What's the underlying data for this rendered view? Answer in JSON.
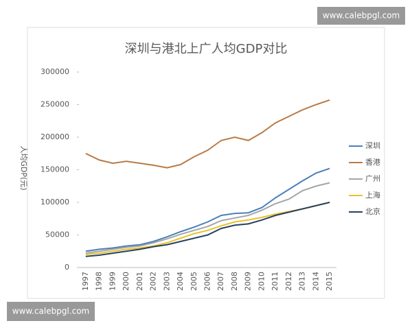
{
  "watermarks": [
    "www.calebpgl.com",
    "www.calebpgl.com"
  ],
  "chart_data": {
    "type": "line",
    "title": "深圳与港北上广人均GDP对比",
    "y_label": "人均GDP(元)",
    "categories": [
      "1997",
      "1998",
      "1999",
      "2000",
      "2001",
      "2002",
      "2003",
      "2004",
      "2005",
      "2006",
      "2007",
      "2008",
      "2009",
      "2010",
      "2011",
      "2012",
      "2013",
      "2014",
      "2015"
    ],
    "series": [
      {
        "name": "深圳",
        "color": "#4a7ebb",
        "values": [
          25000,
          28000,
          30000,
          33000,
          35000,
          40000,
          47000,
          55000,
          62000,
          70000,
          80000,
          83000,
          84000,
          92000,
          107000,
          120000,
          133000,
          145000,
          152000
        ]
      },
      {
        "name": "香港",
        "color": "#b97a45",
        "values": [
          175000,
          165000,
          160000,
          163000,
          160000,
          157000,
          153000,
          158000,
          170000,
          180000,
          195000,
          200000,
          195000,
          207000,
          222000,
          232000,
          242000,
          250000,
          257000
        ]
      },
      {
        "name": "广州",
        "color": "#a5a5a5",
        "values": [
          22000,
          25000,
          28000,
          31000,
          33000,
          38000,
          44000,
          51000,
          57000,
          63000,
          72000,
          76000,
          80000,
          88000,
          98000,
          105000,
          118000,
          125000,
          130000
        ]
      },
      {
        "name": "上海",
        "color": "#e8c229",
        "values": [
          20000,
          22000,
          25000,
          28000,
          30000,
          33000,
          38000,
          45000,
          52000,
          57000,
          64000,
          70000,
          73000,
          77000,
          82000,
          86000,
          90000,
          95000,
          100000
        ]
      },
      {
        "name": "北京",
        "color": "#26415f",
        "values": [
          17000,
          19000,
          22000,
          25000,
          28000,
          32000,
          35000,
          40000,
          45000,
          50000,
          60000,
          65000,
          67000,
          73000,
          80000,
          85000,
          90000,
          95000,
          100000
        ]
      }
    ],
    "ylim": [
      0,
      300000
    ],
    "yticks": [
      0,
      50000,
      100000,
      150000,
      200000,
      250000,
      300000
    ],
    "grid": false,
    "legend": "right"
  }
}
